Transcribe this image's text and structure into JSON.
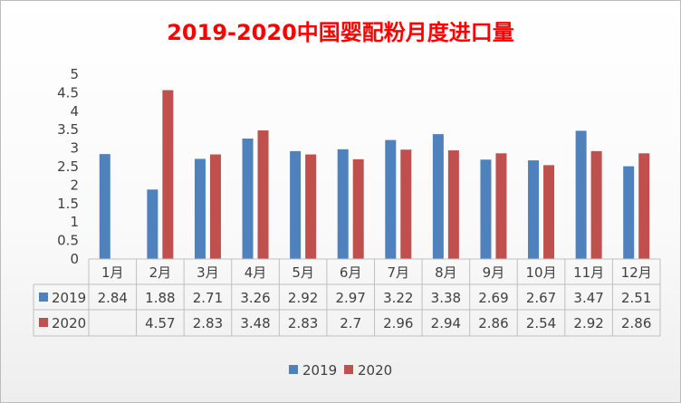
{
  "chart_data": {
    "type": "bar",
    "title": "2019-2020中国婴配粉月度进口量",
    "xlabel": "",
    "ylabel": "",
    "ylim": [
      0,
      5
    ],
    "yticks": [
      "0",
      "0.5",
      "1",
      "1.5",
      "2",
      "2.5",
      "3",
      "3.5",
      "4",
      "4.5",
      "5"
    ],
    "categories": [
      "1月",
      "2月",
      "3月",
      "4月",
      "5月",
      "6月",
      "7月",
      "8月",
      "9月",
      "10月",
      "11月",
      "12月"
    ],
    "series": [
      {
        "name": "2019",
        "color": "#4f81bd",
        "values": [
          2.84,
          1.88,
          2.71,
          3.26,
          2.92,
          2.97,
          3.22,
          3.38,
          2.69,
          2.67,
          3.47,
          2.51
        ],
        "labels": [
          "2.84",
          "1.88",
          "2.71",
          "3.26",
          "2.92",
          "2.97",
          "3.22",
          "3.38",
          "2.69",
          "2.67",
          "3.47",
          "2.51"
        ]
      },
      {
        "name": "2020",
        "color": "#c0504d",
        "values": [
          null,
          4.57,
          2.83,
          3.48,
          2.83,
          2.7,
          2.96,
          2.94,
          2.86,
          2.54,
          2.92,
          2.86
        ],
        "labels": [
          "",
          "4.57",
          "2.83",
          "3.48",
          "2.83",
          "2.7",
          "2.96",
          "2.94",
          "2.86",
          "2.54",
          "2.92",
          "2.86"
        ]
      }
    ],
    "data_table": true,
    "grid": false,
    "legend_position": "bottom",
    "title_color": "#ff0000"
  }
}
